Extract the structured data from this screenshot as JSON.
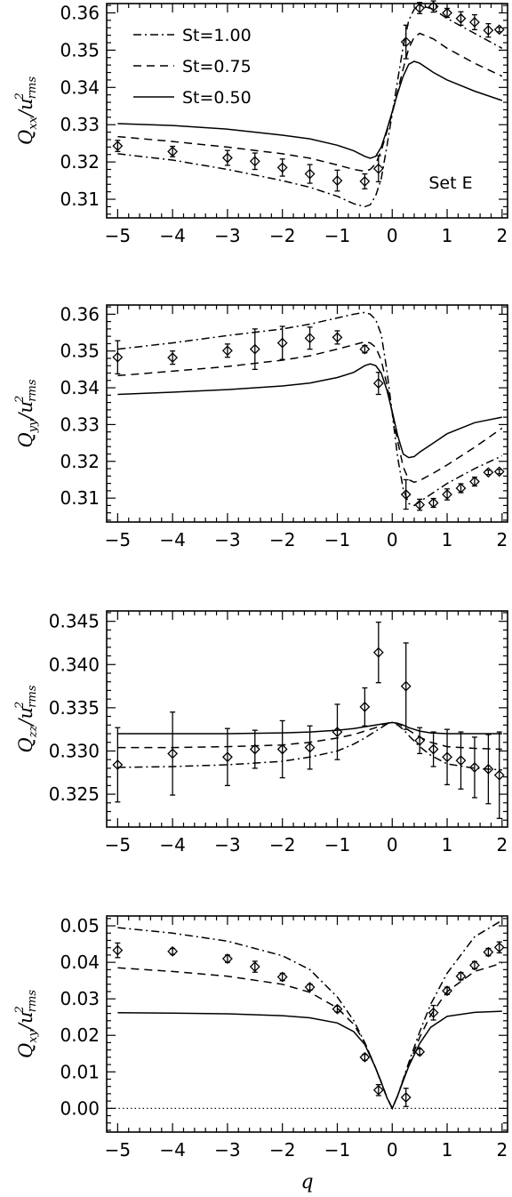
{
  "chart_data": [
    {
      "type": "line",
      "panel": "Qxx",
      "ylabel": {
        "main": "Q",
        "sub": "xx",
        "slash": "/",
        "u": "u",
        "sup": "2",
        "usub": "rms"
      },
      "xlim": [
        -5.2,
        2.1
      ],
      "ylim": [
        0.305,
        0.3625
      ],
      "xticks": [
        -5,
        -4,
        -3,
        -2,
        -1,
        0,
        1,
        2
      ],
      "yticks": [
        0.31,
        0.32,
        0.33,
        0.34,
        0.35,
        0.36
      ],
      "yticklabels": [
        "0.31",
        "0.32",
        "0.33",
        "0.34",
        "0.35",
        "0.36"
      ],
      "legend": [
        {
          "label": "St=1.00",
          "style": "dashdot"
        },
        {
          "label": "St=0.75",
          "style": "dashed"
        },
        {
          "label": "St=0.50",
          "style": "solid"
        }
      ],
      "annotation": "Set E",
      "series": [
        {
          "style": "dashdot",
          "x": [
            -5,
            -4,
            -3,
            -2.5,
            -2,
            -1.5,
            -1,
            -0.7,
            -0.5,
            -0.4,
            -0.3,
            -0.2,
            -0.1,
            0,
            0.1,
            0.2,
            0.3,
            0.4,
            0.5,
            0.75,
            1,
            1.5,
            2
          ],
          "y": [
            0.3222,
            0.3205,
            0.318,
            0.3165,
            0.315,
            0.3132,
            0.3108,
            0.3088,
            0.308,
            0.3085,
            0.311,
            0.3155,
            0.324,
            0.333,
            0.342,
            0.351,
            0.358,
            0.361,
            0.362,
            0.361,
            0.3585,
            0.3545,
            0.3505
          ]
        },
        {
          "style": "dashed",
          "x": [
            -5,
            -4,
            -3,
            -2,
            -1.5,
            -1,
            -0.7,
            -0.5,
            -0.4,
            -0.3,
            -0.2,
            -0.1,
            0,
            0.1,
            0.2,
            0.3,
            0.4,
            0.5,
            0.75,
            1,
            1.5,
            2
          ],
          "y": [
            0.3268,
            0.3255,
            0.324,
            0.3222,
            0.321,
            0.3192,
            0.318,
            0.3175,
            0.318,
            0.3195,
            0.323,
            0.328,
            0.333,
            0.339,
            0.345,
            0.3505,
            0.3535,
            0.3545,
            0.353,
            0.3505,
            0.3465,
            0.343
          ]
        },
        {
          "style": "solid",
          "x": [
            -5,
            -4,
            -3,
            -2,
            -1.5,
            -1,
            -0.7,
            -0.5,
            -0.4,
            -0.3,
            -0.2,
            -0.1,
            0,
            0.1,
            0.2,
            0.3,
            0.4,
            0.5,
            0.75,
            1,
            1.5,
            2
          ],
          "y": [
            0.3303,
            0.3298,
            0.3288,
            0.3272,
            0.3262,
            0.3245,
            0.323,
            0.3215,
            0.321,
            0.3215,
            0.324,
            0.3285,
            0.3335,
            0.3385,
            0.343,
            0.3462,
            0.347,
            0.3465,
            0.344,
            0.342,
            0.339,
            0.3365
          ]
        }
      ],
      "points": [
        {
          "x": -5,
          "y": 0.3243,
          "err": 0.0015
        },
        {
          "x": -4,
          "y": 0.3228,
          "err": 0.0014
        },
        {
          "x": -3,
          "y": 0.3211,
          "err": 0.002
        },
        {
          "x": -2.5,
          "y": 0.3202,
          "err": 0.0022
        },
        {
          "x": -2,
          "y": 0.3185,
          "err": 0.0023
        },
        {
          "x": -1.5,
          "y": 0.3168,
          "err": 0.0025
        },
        {
          "x": -1,
          "y": 0.315,
          "err": 0.0028
        },
        {
          "x": -0.5,
          "y": 0.3148,
          "err": 0.002
        },
        {
          "x": -0.25,
          "y": 0.3182,
          "err": 0.0035
        },
        {
          "x": 0.25,
          "y": 0.3522,
          "err": 0.0045
        },
        {
          "x": 0.5,
          "y": 0.3613,
          "err": 0.0015
        },
        {
          "x": 0.75,
          "y": 0.3617,
          "err": 0.0015
        },
        {
          "x": 1,
          "y": 0.36,
          "err": 0.0012
        },
        {
          "x": 1.25,
          "y": 0.3585,
          "err": 0.0018
        },
        {
          "x": 1.5,
          "y": 0.3575,
          "err": 0.002
        },
        {
          "x": 1.75,
          "y": 0.3553,
          "err": 0.0018
        },
        {
          "x": 1.95,
          "y": 0.3555,
          "err": 0.0006
        }
      ]
    },
    {
      "type": "line",
      "panel": "Qyy",
      "ylabel": {
        "main": "Q",
        "sub": "yy",
        "slash": "/",
        "u": "u",
        "sup": "2",
        "usub": "rms"
      },
      "xlim": [
        -5.2,
        2.1
      ],
      "ylim": [
        0.3035,
        0.3625
      ],
      "xticks": [
        -5,
        -4,
        -3,
        -2,
        -1,
        0,
        1,
        2
      ],
      "yticks": [
        0.31,
        0.32,
        0.33,
        0.34,
        0.35,
        0.36
      ],
      "yticklabels": [
        "0.31",
        "0.32",
        "0.33",
        "0.34",
        "0.35",
        "0.36"
      ],
      "series": [
        {
          "style": "dashdot",
          "x": [
            -5,
            -4,
            -3,
            -2,
            -1.5,
            -1,
            -0.7,
            -0.5,
            -0.4,
            -0.3,
            -0.2,
            -0.1,
            0,
            0.1,
            0.2,
            0.3,
            0.4,
            0.5,
            0.75,
            1,
            1.5,
            2
          ],
          "y": [
            0.3505,
            0.3522,
            0.3542,
            0.356,
            0.3573,
            0.359,
            0.36,
            0.3605,
            0.36,
            0.3585,
            0.3545,
            0.345,
            0.333,
            0.321,
            0.3125,
            0.3085,
            0.308,
            0.309,
            0.3115,
            0.314,
            0.318,
            0.3215
          ]
        },
        {
          "style": "dashed",
          "x": [
            -5,
            -4,
            -3,
            -2,
            -1.5,
            -1,
            -0.7,
            -0.5,
            -0.4,
            -0.3,
            -0.2,
            -0.1,
            0,
            0.1,
            0.2,
            0.3,
            0.4,
            0.5,
            0.75,
            1,
            1.5,
            2
          ],
          "y": [
            0.3433,
            0.3445,
            0.3458,
            0.3475,
            0.3487,
            0.3505,
            0.3517,
            0.3525,
            0.3522,
            0.351,
            0.3475,
            0.341,
            0.333,
            0.3255,
            0.3185,
            0.315,
            0.3143,
            0.3148,
            0.3168,
            0.319,
            0.3238,
            0.329
          ]
        },
        {
          "style": "solid",
          "x": [
            -5,
            -4,
            -3,
            -2,
            -1.5,
            -1,
            -0.7,
            -0.5,
            -0.4,
            -0.3,
            -0.2,
            -0.1,
            0,
            0.1,
            0.2,
            0.3,
            0.4,
            0.5,
            0.75,
            1,
            1.5,
            2
          ],
          "y": [
            0.3382,
            0.3388,
            0.3395,
            0.3405,
            0.3413,
            0.3428,
            0.3442,
            0.346,
            0.3465,
            0.346,
            0.344,
            0.3395,
            0.3335,
            0.327,
            0.322,
            0.321,
            0.3213,
            0.3225,
            0.325,
            0.3275,
            0.3305,
            0.332
          ]
        }
      ],
      "points": [
        {
          "x": -5,
          "y": 0.3483,
          "err": 0.0045
        },
        {
          "x": -4,
          "y": 0.3482,
          "err": 0.0018
        },
        {
          "x": -3,
          "y": 0.3501,
          "err": 0.0018
        },
        {
          "x": -2.5,
          "y": 0.3505,
          "err": 0.0055
        },
        {
          "x": -2,
          "y": 0.3522,
          "err": 0.0045
        },
        {
          "x": -1.5,
          "y": 0.3535,
          "err": 0.003
        },
        {
          "x": -1,
          "y": 0.3537,
          "err": 0.0018
        },
        {
          "x": -0.5,
          "y": 0.3505,
          "err": 0.001
        },
        {
          "x": -0.25,
          "y": 0.3412,
          "err": 0.003
        },
        {
          "x": 0.25,
          "y": 0.311,
          "err": 0.004
        },
        {
          "x": 0.5,
          "y": 0.3082,
          "err": 0.0015
        },
        {
          "x": 0.75,
          "y": 0.3087,
          "err": 0.0012
        },
        {
          "x": 1,
          "y": 0.311,
          "err": 0.0015
        },
        {
          "x": 1.25,
          "y": 0.3127,
          "err": 0.0012
        },
        {
          "x": 1.5,
          "y": 0.3145,
          "err": 0.0012
        },
        {
          "x": 1.75,
          "y": 0.317,
          "err": 0.0006
        },
        {
          "x": 1.95,
          "y": 0.3172,
          "err": 0.0006
        }
      ]
    },
    {
      "type": "line",
      "panel": "Qzz",
      "ylabel": {
        "main": "Q",
        "sub": "zz",
        "slash": "/",
        "u": "u",
        "sup": "2",
        "usub": "rms"
      },
      "xlim": [
        -5.2,
        2.1
      ],
      "ylim": [
        0.3212,
        0.3462
      ],
      "xticks": [
        -5,
        -4,
        -3,
        -2,
        -1,
        0,
        1,
        2
      ],
      "yticks": [
        0.325,
        0.33,
        0.335,
        0.34,
        0.345
      ],
      "yticklabels": [
        "0.325",
        "0.330",
        "0.335",
        "0.340",
        "0.345"
      ],
      "series": [
        {
          "style": "dashdot",
          "x": [
            -5,
            -4,
            -3,
            -2,
            -1.5,
            -1,
            -0.7,
            -0.5,
            -0.3,
            -0.2,
            -0.1,
            0,
            0.1,
            0.2,
            0.3,
            0.5,
            0.7,
            1,
            1.5,
            2
          ],
          "y": [
            0.3281,
            0.3282,
            0.3284,
            0.3288,
            0.3293,
            0.33,
            0.3308,
            0.3315,
            0.3323,
            0.3327,
            0.3331,
            0.3333,
            0.333,
            0.3325,
            0.3318,
            0.3305,
            0.3295,
            0.3285,
            0.328,
            0.3278
          ]
        },
        {
          "style": "dashed",
          "x": [
            -5,
            -4,
            -3,
            -2,
            -1.5,
            -1,
            -0.7,
            -0.5,
            -0.3,
            -0.2,
            -0.1,
            0,
            0.1,
            0.2,
            0.3,
            0.5,
            0.7,
            1,
            1.5,
            2
          ],
          "y": [
            0.3304,
            0.3304,
            0.3305,
            0.3307,
            0.331,
            0.3315,
            0.3319,
            0.3323,
            0.3327,
            0.333,
            0.3332,
            0.3333,
            0.3332,
            0.3328,
            0.3324,
            0.3316,
            0.331,
            0.3305,
            0.3303,
            0.3302
          ]
        },
        {
          "style": "solid",
          "x": [
            -5,
            -4,
            -3,
            -2,
            -1.5,
            -1,
            -0.7,
            -0.5,
            -0.3,
            -0.2,
            -0.1,
            0,
            0.1,
            0.2,
            0.3,
            0.5,
            0.7,
            1,
            1.5,
            2
          ],
          "y": [
            0.332,
            0.332,
            0.332,
            0.3321,
            0.3322,
            0.3324,
            0.3326,
            0.3328,
            0.333,
            0.3331,
            0.3332,
            0.3333,
            0.3332,
            0.333,
            0.3327,
            0.3323,
            0.3321,
            0.332,
            0.332,
            0.332
          ]
        }
      ],
      "points": [
        {
          "x": -5,
          "y": 0.3284,
          "err": 0.0043
        },
        {
          "x": -4,
          "y": 0.3297,
          "err": 0.0048
        },
        {
          "x": -3,
          "y": 0.3293,
          "err": 0.0033
        },
        {
          "x": -2.5,
          "y": 0.3302,
          "err": 0.0022
        },
        {
          "x": -2,
          "y": 0.3302,
          "err": 0.0033
        },
        {
          "x": -1.5,
          "y": 0.3304,
          "err": 0.0025
        },
        {
          "x": -1,
          "y": 0.3322,
          "err": 0.0032
        },
        {
          "x": -0.5,
          "y": 0.3351,
          "err": 0.0022
        },
        {
          "x": -0.25,
          "y": 0.3414,
          "err": 0.0035
        },
        {
          "x": 0.25,
          "y": 0.3375,
          "err": 0.005
        },
        {
          "x": 0.5,
          "y": 0.3312,
          "err": 0.0015
        },
        {
          "x": 0.75,
          "y": 0.3302,
          "err": 0.002
        },
        {
          "x": 1,
          "y": 0.3293,
          "err": 0.0032
        },
        {
          "x": 1.25,
          "y": 0.3289,
          "err": 0.0033
        },
        {
          "x": 1.5,
          "y": 0.3281,
          "err": 0.0035
        },
        {
          "x": 1.75,
          "y": 0.3279,
          "err": 0.004
        },
        {
          "x": 1.95,
          "y": 0.3272,
          "err": 0.005
        }
      ]
    },
    {
      "type": "line",
      "panel": "Qxy",
      "ylabel": {
        "main": "Q",
        "sub": "xy",
        "slash": "/",
        "u": "u",
        "sup": "2",
        "usub": "rms"
      },
      "xlabel": "q",
      "xlim": [
        -5.2,
        2.1
      ],
      "ylim": [
        -0.0065,
        0.0527
      ],
      "xticks": [
        -5,
        -4,
        -3,
        -2,
        -1,
        0,
        1,
        2
      ],
      "yticks": [
        0,
        0.01,
        0.02,
        0.03,
        0.04,
        0.05
      ],
      "yticklabels": [
        "0.00",
        "0.01",
        "0.02",
        "0.03",
        "0.04",
        "0.05"
      ],
      "zero_line": "dotted",
      "series": [
        {
          "style": "dashdot",
          "x": [
            -5,
            -4,
            -3,
            -2,
            -1.5,
            -1,
            -0.7,
            -0.5,
            -0.3,
            -0.2,
            -0.1,
            0,
            0.1,
            0.2,
            0.3,
            0.5,
            0.7,
            1,
            1.5,
            2
          ],
          "y": [
            0.0495,
            0.048,
            0.0458,
            0.0418,
            0.038,
            0.0305,
            0.024,
            0.018,
            0.011,
            0.007,
            0.003,
            0.0,
            0.0035,
            0.008,
            0.0125,
            0.021,
            0.0285,
            0.037,
            0.047,
            0.0515
          ]
        },
        {
          "style": "dashed",
          "x": [
            -5,
            -4,
            -3,
            -2,
            -1.5,
            -1,
            -0.7,
            -0.5,
            -0.3,
            -0.2,
            -0.1,
            0,
            0.1,
            0.2,
            0.3,
            0.5,
            0.7,
            1,
            1.5,
            2
          ],
          "y": [
            0.0385,
            0.0375,
            0.0362,
            0.034,
            0.0318,
            0.0275,
            0.023,
            0.018,
            0.011,
            0.0072,
            0.0032,
            0.0,
            0.0035,
            0.0078,
            0.0118,
            0.0195,
            0.0255,
            0.032,
            0.0375,
            0.0398
          ]
        },
        {
          "style": "solid",
          "x": [
            -5,
            -4,
            -3,
            -2,
            -1.5,
            -1,
            -0.7,
            -0.5,
            -0.3,
            -0.2,
            -0.1,
            0,
            0.1,
            0.2,
            0.3,
            0.5,
            0.7,
            1,
            1.5,
            2
          ],
          "y": [
            0.0262,
            0.0261,
            0.0259,
            0.0254,
            0.0248,
            0.0234,
            0.021,
            0.0175,
            0.011,
            0.0072,
            0.003,
            0.0,
            0.0035,
            0.0075,
            0.0115,
            0.0178,
            0.0222,
            0.0252,
            0.0263,
            0.0266
          ]
        }
      ],
      "points": [
        {
          "x": -5,
          "y": 0.0433,
          "err": 0.002
        },
        {
          "x": -4,
          "y": 0.043,
          "err": 0.0008
        },
        {
          "x": -3,
          "y": 0.041,
          "err": 0.001
        },
        {
          "x": -2.5,
          "y": 0.0388,
          "err": 0.0015
        },
        {
          "x": -2,
          "y": 0.036,
          "err": 0.001
        },
        {
          "x": -1.5,
          "y": 0.0332,
          "err": 0.0008
        },
        {
          "x": -1,
          "y": 0.0272,
          "err": 0.0008
        },
        {
          "x": -0.5,
          "y": 0.014,
          "err": 0.0008
        },
        {
          "x": -0.25,
          "y": 0.005,
          "err": 0.0015
        },
        {
          "x": 0.25,
          "y": 0.003,
          "err": 0.0025
        },
        {
          "x": 0.5,
          "y": 0.0155,
          "err": 0.0008
        },
        {
          "x": 0.75,
          "y": 0.0262,
          "err": 0.002
        },
        {
          "x": 1,
          "y": 0.0322,
          "err": 0.001
        },
        {
          "x": 1.25,
          "y": 0.0362,
          "err": 0.001
        },
        {
          "x": 1.5,
          "y": 0.0392,
          "err": 0.001
        },
        {
          "x": 1.75,
          "y": 0.0428,
          "err": 0.001
        },
        {
          "x": 1.95,
          "y": 0.0441,
          "err": 0.0015
        }
      ]
    }
  ]
}
